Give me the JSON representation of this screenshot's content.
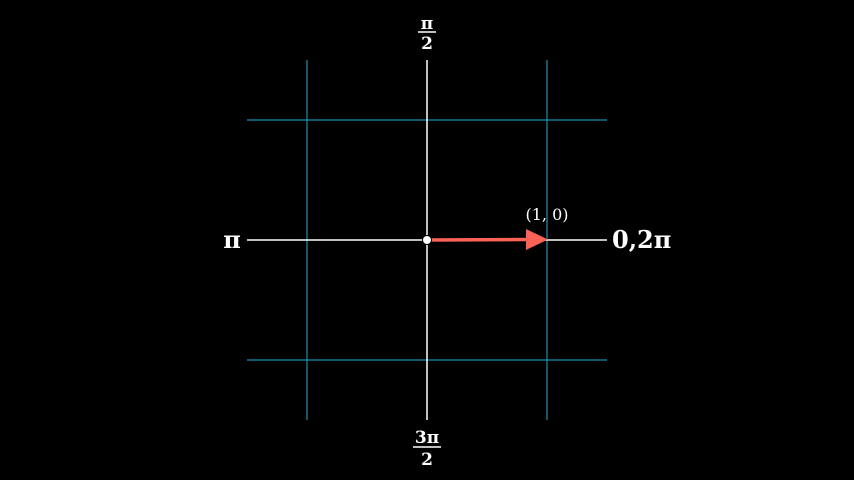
{
  "labels": {
    "top_numerator": "π",
    "top_denominator": "2",
    "bottom_numerator": "3π",
    "bottom_denominator": "2",
    "left": "π",
    "right": "0,2π",
    "vector": "(1, 0)"
  },
  "colors": {
    "background": "#000000",
    "grid": "#29abca",
    "axis": "#ffffff",
    "vector": "#fc6255",
    "text": "#ffffff"
  }
}
